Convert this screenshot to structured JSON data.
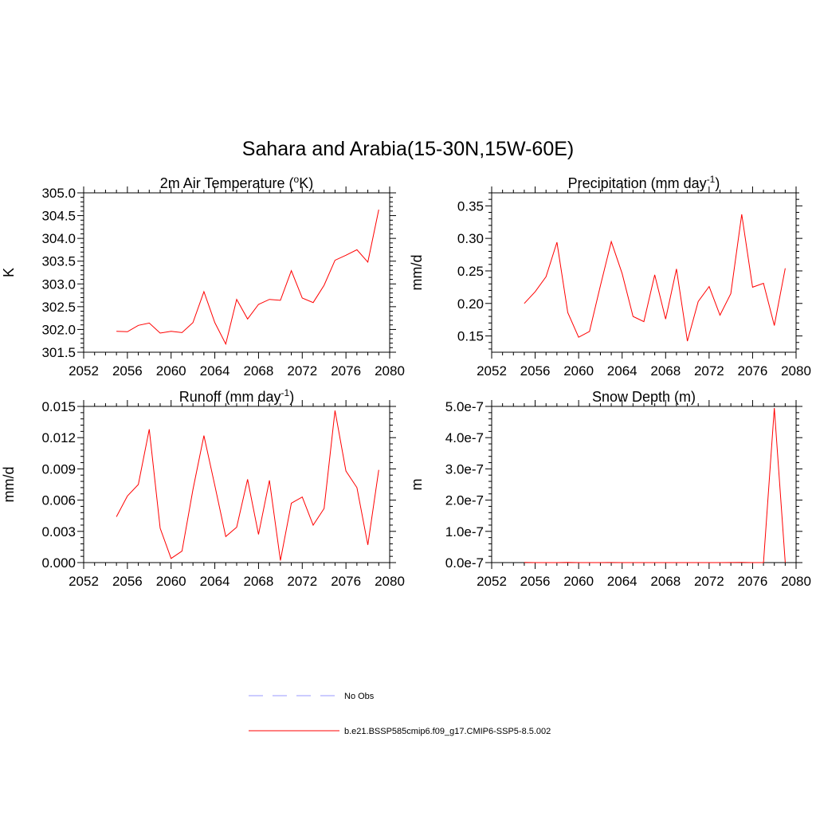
{
  "figure": {
    "title": "Sahara and Arabia(15-30N,15W-60E)",
    "line_color": "#ff0000"
  },
  "chart_data": [
    {
      "type": "line",
      "title": "2m Air Temperature (°K)",
      "title_parts": {
        "pre": "2m Air Temperature (",
        "sup": "o",
        "post": "K)"
      },
      "xlabel": "",
      "ylabel": "K",
      "xlim": [
        2052,
        2080
      ],
      "ylim": [
        301.5,
        305.0
      ],
      "xticks": [
        2052,
        2056,
        2060,
        2064,
        2068,
        2072,
        2076,
        2080
      ],
      "yticks": [
        301.5,
        302.0,
        302.5,
        303.0,
        303.5,
        304.0,
        304.5,
        305.0
      ],
      "ytick_labels": [
        "301.5",
        "302.0",
        "302.5",
        "303.0",
        "303.5",
        "304.0",
        "304.5",
        "305.0"
      ],
      "grid": false,
      "series": [
        {
          "name": "b.e21.BSSP585cmip6.f09_g17.CMIP6-SSP5-8.5.002",
          "x": [
            2055,
            2056,
            2057,
            2058,
            2059,
            2060,
            2061,
            2062,
            2063,
            2064,
            2065,
            2066,
            2067,
            2068,
            2069,
            2070,
            2071,
            2072,
            2073,
            2074,
            2075,
            2076,
            2077,
            2078,
            2079
          ],
          "y": [
            301.96,
            301.95,
            302.09,
            302.14,
            301.92,
            301.96,
            301.93,
            302.15,
            302.83,
            302.15,
            301.68,
            302.66,
            302.23,
            302.55,
            302.66,
            302.64,
            303.29,
            302.69,
            302.59,
            302.97,
            303.52,
            303.63,
            303.75,
            303.48,
            304.63
          ]
        }
      ]
    },
    {
      "type": "line",
      "title": "Precipitation (mm day-1)",
      "title_parts": {
        "pre": "Precipitation (mm day",
        "sup": "-1",
        "post": ")"
      },
      "xlabel": "",
      "ylabel": "mm/d",
      "xlim": [
        2052,
        2080
      ],
      "ylim": [
        0.125,
        0.37
      ],
      "xticks": [
        2052,
        2056,
        2060,
        2064,
        2068,
        2072,
        2076,
        2080
      ],
      "yticks": [
        0.15,
        0.2,
        0.25,
        0.3,
        0.35
      ],
      "ytick_labels": [
        "0.15",
        "0.20",
        "0.25",
        "0.30",
        "0.35"
      ],
      "grid": false,
      "series": [
        {
          "name": "b.e21.BSSP585cmip6.f09_g17.CMIP6-SSP5-8.5.002",
          "x": [
            2055,
            2056,
            2057,
            2058,
            2059,
            2060,
            2061,
            2062,
            2063,
            2064,
            2065,
            2066,
            2067,
            2068,
            2069,
            2070,
            2071,
            2072,
            2073,
            2074,
            2075,
            2076,
            2077,
            2078,
            2079
          ],
          "y": [
            0.2,
            0.218,
            0.241,
            0.294,
            0.186,
            0.148,
            0.157,
            0.227,
            0.295,
            0.246,
            0.18,
            0.172,
            0.244,
            0.176,
            0.253,
            0.142,
            0.203,
            0.226,
            0.182,
            0.215,
            0.337,
            0.225,
            0.231,
            0.166,
            0.254
          ]
        }
      ]
    },
    {
      "type": "line",
      "title": "Runoff (mm day-1)",
      "title_parts": {
        "pre": "Runoff (mm day",
        "sup": "-1",
        "post": ")"
      },
      "xlabel": "",
      "ylabel": "mm/d",
      "xlim": [
        2052,
        2080
      ],
      "ylim": [
        0,
        0.015
      ],
      "xticks": [
        2052,
        2056,
        2060,
        2064,
        2068,
        2072,
        2076,
        2080
      ],
      "yticks": [
        0.0,
        0.003,
        0.006,
        0.009,
        0.012,
        0.015
      ],
      "ytick_labels": [
        "0.000",
        "0.003",
        "0.006",
        "0.009",
        "0.012",
        "0.015"
      ],
      "grid": false,
      "series": [
        {
          "name": "b.e21.BSSP585cmip6.f09_g17.CMIP6-SSP5-8.5.002",
          "x": [
            2055,
            2056,
            2057,
            2058,
            2059,
            2060,
            2061,
            2062,
            2063,
            2064,
            2065,
            2066,
            2067,
            2068,
            2069,
            2070,
            2071,
            2072,
            2073,
            2074,
            2075,
            2076,
            2077,
            2078,
            2079
          ],
          "y": [
            0.0044,
            0.0064,
            0.0075,
            0.0128,
            0.0033,
            0.0004,
            0.0011,
            0.007,
            0.0122,
            0.0074,
            0.0025,
            0.0034,
            0.008,
            0.0027,
            0.0079,
            0.0002,
            0.0057,
            0.0063,
            0.0036,
            0.0052,
            0.0146,
            0.0088,
            0.0072,
            0.0017,
            0.0089
          ]
        }
      ]
    },
    {
      "type": "line",
      "title": "Snow Depth (m)",
      "title_parts": {
        "pre": "Snow Depth (m)",
        "sup": "",
        "post": ""
      },
      "xlabel": "",
      "ylabel": "m",
      "xlim": [
        2052,
        2080
      ],
      "ylim": [
        0,
        5e-07
      ],
      "xticks": [
        2052,
        2056,
        2060,
        2064,
        2068,
        2072,
        2076,
        2080
      ],
      "yticks": [
        0,
        1e-07,
        2e-07,
        3e-07,
        4e-07,
        5e-07
      ],
      "ytick_labels": [
        "0.0e-7",
        "1.0e-7",
        "2.0e-7",
        "3.0e-7",
        "4.0e-7",
        "5.0e-7"
      ],
      "grid": false,
      "series": [
        {
          "name": "b.e21.BSSP585cmip6.f09_g17.CMIP6-SSP5-8.5.002",
          "x": [
            2055,
            2056,
            2057,
            2058,
            2059,
            2060,
            2061,
            2062,
            2063,
            2064,
            2065,
            2066,
            2067,
            2068,
            2069,
            2070,
            2071,
            2072,
            2073,
            2074,
            2075,
            2076,
            2077,
            2078,
            2079
          ],
          "y": [
            7e-10,
            0,
            0,
            0,
            8e-10,
            0,
            0,
            0,
            2e-10,
            0,
            0,
            0,
            0,
            0,
            1e-10,
            0,
            1e-10,
            0,
            0,
            3e-10,
            5e-10,
            0,
            0,
            4.95e-07,
            0
          ]
        }
      ]
    }
  ],
  "legend": {
    "placement": "bottom-center",
    "entries": [
      {
        "label": "No Obs",
        "style": "dashed",
        "color": "#9999ff"
      },
      {
        "label": "b.e21.BSSP585cmip6.f09_g17.CMIP6-SSP5-8.5.002",
        "style": "solid",
        "color": "#ff0000"
      }
    ]
  }
}
